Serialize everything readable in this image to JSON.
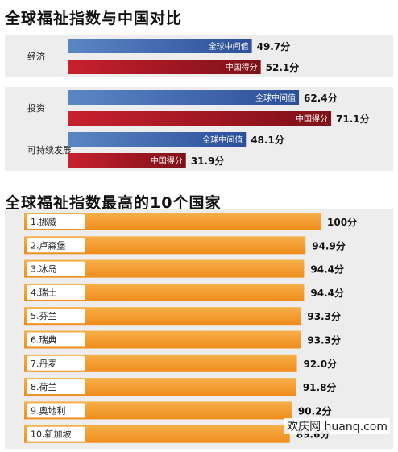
{
  "watermark": "欢庆网 huanq.com",
  "colors": {
    "median_bar": "#5b86c4",
    "median_bar_dark": "#2d4f9a",
    "china_bar": "#c8202e",
    "china_bar_dark": "#7e1018",
    "top10_bar": "#f08c1c",
    "top10_bar_light": "#f6b04a",
    "panel_bg": "#ededed"
  },
  "chart_data": [
    {
      "type": "bar",
      "orientation": "horizontal",
      "title": "全球福祉指数与中国对比",
      "xlim": [
        0,
        100
      ],
      "categories": [
        {
          "name": "经济",
          "bars": [
            {
              "label": "全球中间值",
              "value": 49.7,
              "value_text": "49.7分",
              "kind": "median"
            },
            {
              "label": "中国得分",
              "value": 52.1,
              "value_text": "52.1分",
              "kind": "china"
            }
          ]
        },
        {
          "name": "投资",
          "bars": [
            {
              "label": "全球中间值",
              "value": 62.4,
              "value_text": "62.4分",
              "kind": "median"
            },
            {
              "label": "中国得分",
              "value": 71.1,
              "value_text": "71.1分",
              "kind": "china"
            }
          ]
        },
        {
          "name": "可持续发展",
          "bars": [
            {
              "label": "全球中间值",
              "value": 48.1,
              "value_text": "48.1分",
              "kind": "median"
            },
            {
              "label": "中国得分",
              "value": 31.9,
              "value_text": "31.9分",
              "kind": "china"
            }
          ]
        }
      ]
    },
    {
      "type": "bar",
      "orientation": "horizontal",
      "title": "全球福祉指数最高的10个国家",
      "xlim": [
        0,
        100
      ],
      "categories": [
        "1.挪威",
        "2.卢森堡",
        "3.冰岛",
        "4.瑞士",
        "5.芬兰",
        "6.瑞典",
        "7.丹麦",
        "8.荷兰",
        "9.奥地利",
        "10.新加坡"
      ],
      "values": [
        100,
        94.9,
        94.4,
        94.4,
        93.3,
        93.3,
        92.0,
        91.8,
        90.2,
        89.6
      ],
      "value_labels": [
        "100分",
        "94.9分",
        "94.4分",
        "94.4分",
        "93.3分",
        "93.3分",
        "92.0分",
        "91.8分",
        "90.2分",
        "89.6分"
      ]
    }
  ]
}
